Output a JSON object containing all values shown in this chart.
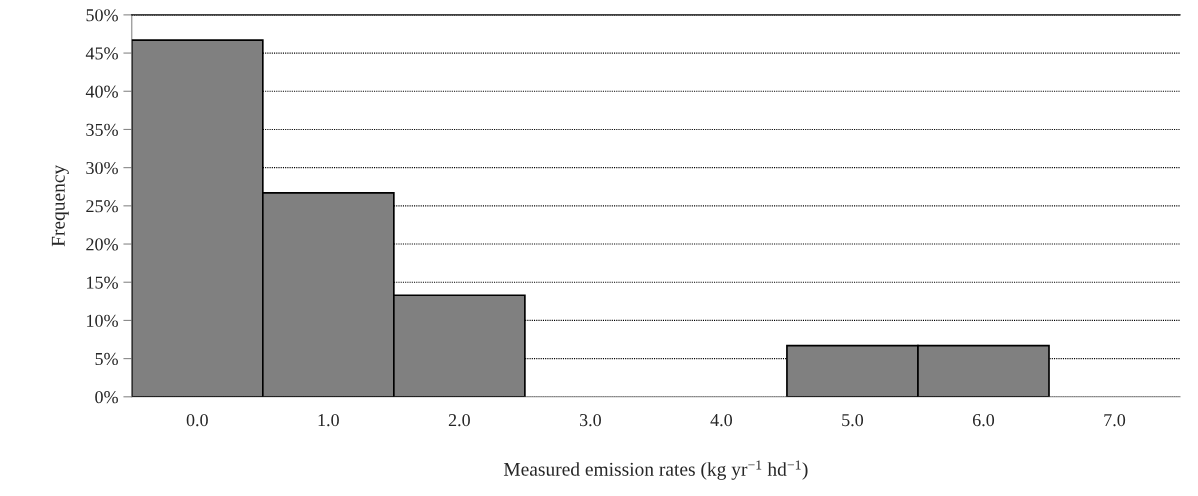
{
  "chart_data": {
    "type": "bar",
    "categories": [
      "0.0",
      "1.0",
      "2.0",
      "3.0",
      "4.0",
      "5.0",
      "6.0",
      "7.0"
    ],
    "values": [
      46.7,
      26.7,
      13.3,
      0,
      0,
      6.7,
      6.7,
      0
    ],
    "color": "#808080",
    "xlabel": "Measured emission rates (kg yr$^{−1}$ hd$^{−1}$)",
    "ylabel": "Frequency",
    "ylim": [
      0,
      50
    ],
    "yticks": [
      {
        "value": 0,
        "label": "0%"
      },
      {
        "value": 5,
        "label": "5%"
      },
      {
        "value": 10,
        "label": "10%"
      },
      {
        "value": 15,
        "label": "15%"
      },
      {
        "value": 20,
        "label": "20%"
      },
      {
        "value": 25,
        "label": "25%"
      },
      {
        "value": 30,
        "label": "30%"
      },
      {
        "value": 35,
        "label": "35%"
      },
      {
        "value": 40,
        "label": "40%"
      },
      {
        "value": 45,
        "label": "45%"
      },
      {
        "value": 50,
        "label": "50%"
      }
    ],
    "grid": "y"
  }
}
